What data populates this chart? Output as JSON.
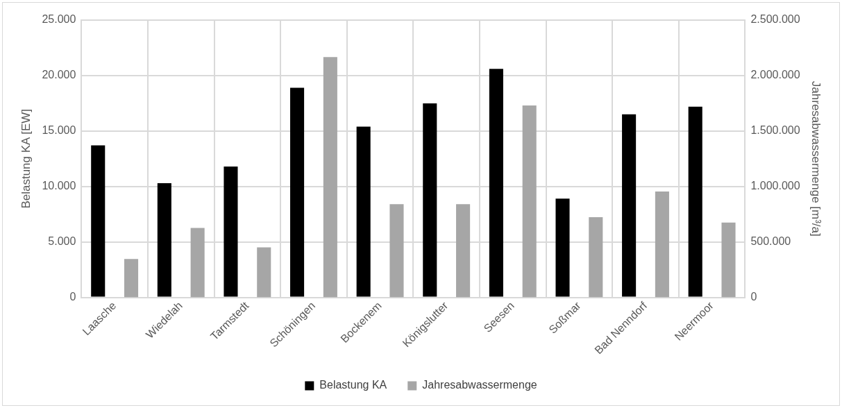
{
  "chart_data": {
    "type": "bar",
    "categories": [
      "Laasche",
      "Wiedelah",
      "Tarmstedt",
      "Schöningen",
      "Bockenem",
      "Königslutter",
      "Seesen",
      "Soßmar",
      "Bad Nenndorf",
      "Neermoor"
    ],
    "ylabel": "Belastung KA [EW]",
    "y2label": "Jahresabwassermenge [m³/a]",
    "series": [
      {
        "name": "Belastung KA",
        "color": "#000000",
        "values": [
          13700,
          10300,
          11800,
          18900,
          15400,
          17500,
          20600,
          8900,
          16500,
          17200
        ]
      },
      {
        "name": "Jahresabwassermenge",
        "color": "#a6a6a6",
        "axis": "y2",
        "values": [
          347000,
          626000,
          451000,
          2167000,
          840000,
          840000,
          1731000,
          723000,
          954000,
          675000
        ]
      }
    ],
    "ylim": [
      0,
      25000
    ],
    "yticks": [
      {
        "value": 0,
        "label": "0"
      },
      {
        "value": 5000,
        "label": "5.000"
      },
      {
        "value": 10000,
        "label": "10.000"
      },
      {
        "value": 15000,
        "label": "15.000"
      },
      {
        "value": 20000,
        "label": "20.000"
      },
      {
        "value": 25000,
        "label": "25.000"
      }
    ],
    "y2lim": [
      0,
      2500000
    ],
    "y2ticks": [
      {
        "value": 0,
        "label": "0"
      },
      {
        "value": 500000,
        "label": "500.000"
      },
      {
        "value": 1000000,
        "label": "1.000.000"
      },
      {
        "value": 1500000,
        "label": "1.500.000"
      },
      {
        "value": 2000000,
        "label": "2.000.000"
      },
      {
        "value": 2500000,
        "label": "2.500.000"
      }
    ],
    "grid": true,
    "legend": "bottom"
  }
}
